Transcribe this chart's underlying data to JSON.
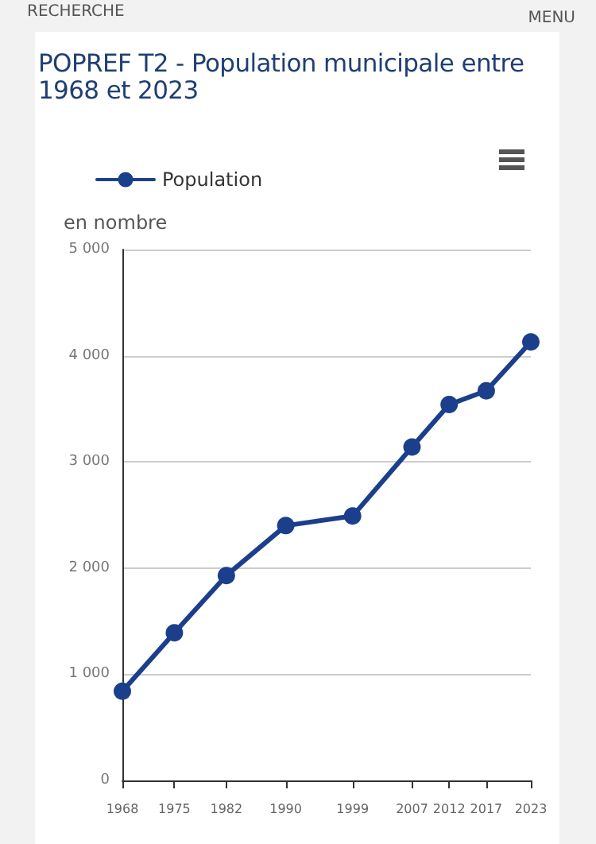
{
  "chart_data": {
    "type": "line",
    "title": "POPREF T2 - Population municipale entre 1968 et 2023",
    "ylabel": "en nombre",
    "annotations": [
      "RECHERCHE",
      "MENU"
    ],
    "x": [
      1968,
      1975,
      1982,
      1990,
      1999,
      2007,
      2012,
      2017,
      2023
    ],
    "series": [
      {
        "name": "Population",
        "color": "#1b3f8b",
        "values": [
          840,
          1390,
          1930,
          2400,
          2490,
          3140,
          3540,
          3670,
          4130
        ]
      }
    ],
    "xlim": [
      1968,
      2023
    ],
    "xticks": [
      1968,
      1975,
      1982,
      1990,
      1999,
      2007,
      2012,
      2017,
      2023
    ],
    "ylim": [
      0,
      5000
    ],
    "yticks": [
      0,
      {
        "value": 1000,
        "label": "1 000"
      },
      {
        "value": 2000,
        "label": "2 000"
      },
      {
        "value": 3000,
        "label": "3 000"
      },
      {
        "value": 4000,
        "label": "4 000"
      },
      {
        "value": 5000,
        "label": "5 000"
      }
    ],
    "grid": "y",
    "legend": "top left",
    "marker": "circle",
    "line_style": "solid"
  }
}
